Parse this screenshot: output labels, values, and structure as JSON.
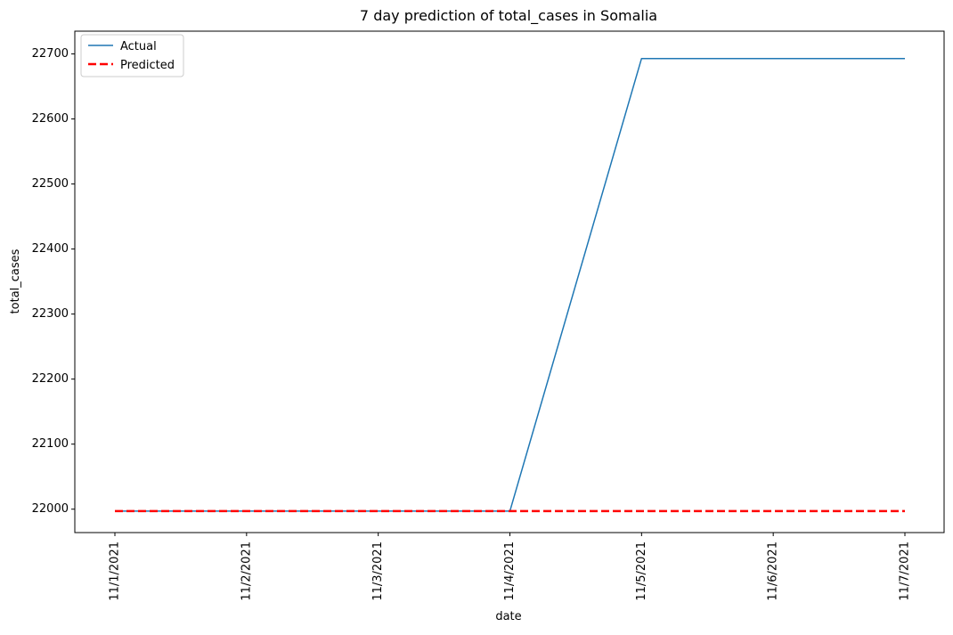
{
  "chart_data": {
    "type": "line",
    "title": "7 day prediction of total_cases in Somalia",
    "xlabel": "date",
    "ylabel": "total_cases",
    "categories": [
      "11/1/2021",
      "11/2/2021",
      "11/3/2021",
      "11/4/2021",
      "11/5/2021",
      "11/6/2021",
      "11/7/2021"
    ],
    "yticks": [
      22000,
      22100,
      22200,
      22300,
      22400,
      22500,
      22600,
      22700
    ],
    "ylim": [
      21964,
      22735
    ],
    "grid": false,
    "legend_position": "top-left",
    "series": [
      {
        "name": "Actual",
        "color": "#1f77b4",
        "style": "solid",
        "values": [
          21997,
          21997,
          21997,
          21997,
          22693,
          22693,
          22693
        ]
      },
      {
        "name": "Predicted",
        "color": "#ff0000",
        "style": "dashed",
        "values": [
          21997,
          21997,
          21997,
          21997,
          21997,
          21997,
          21997
        ]
      }
    ]
  }
}
